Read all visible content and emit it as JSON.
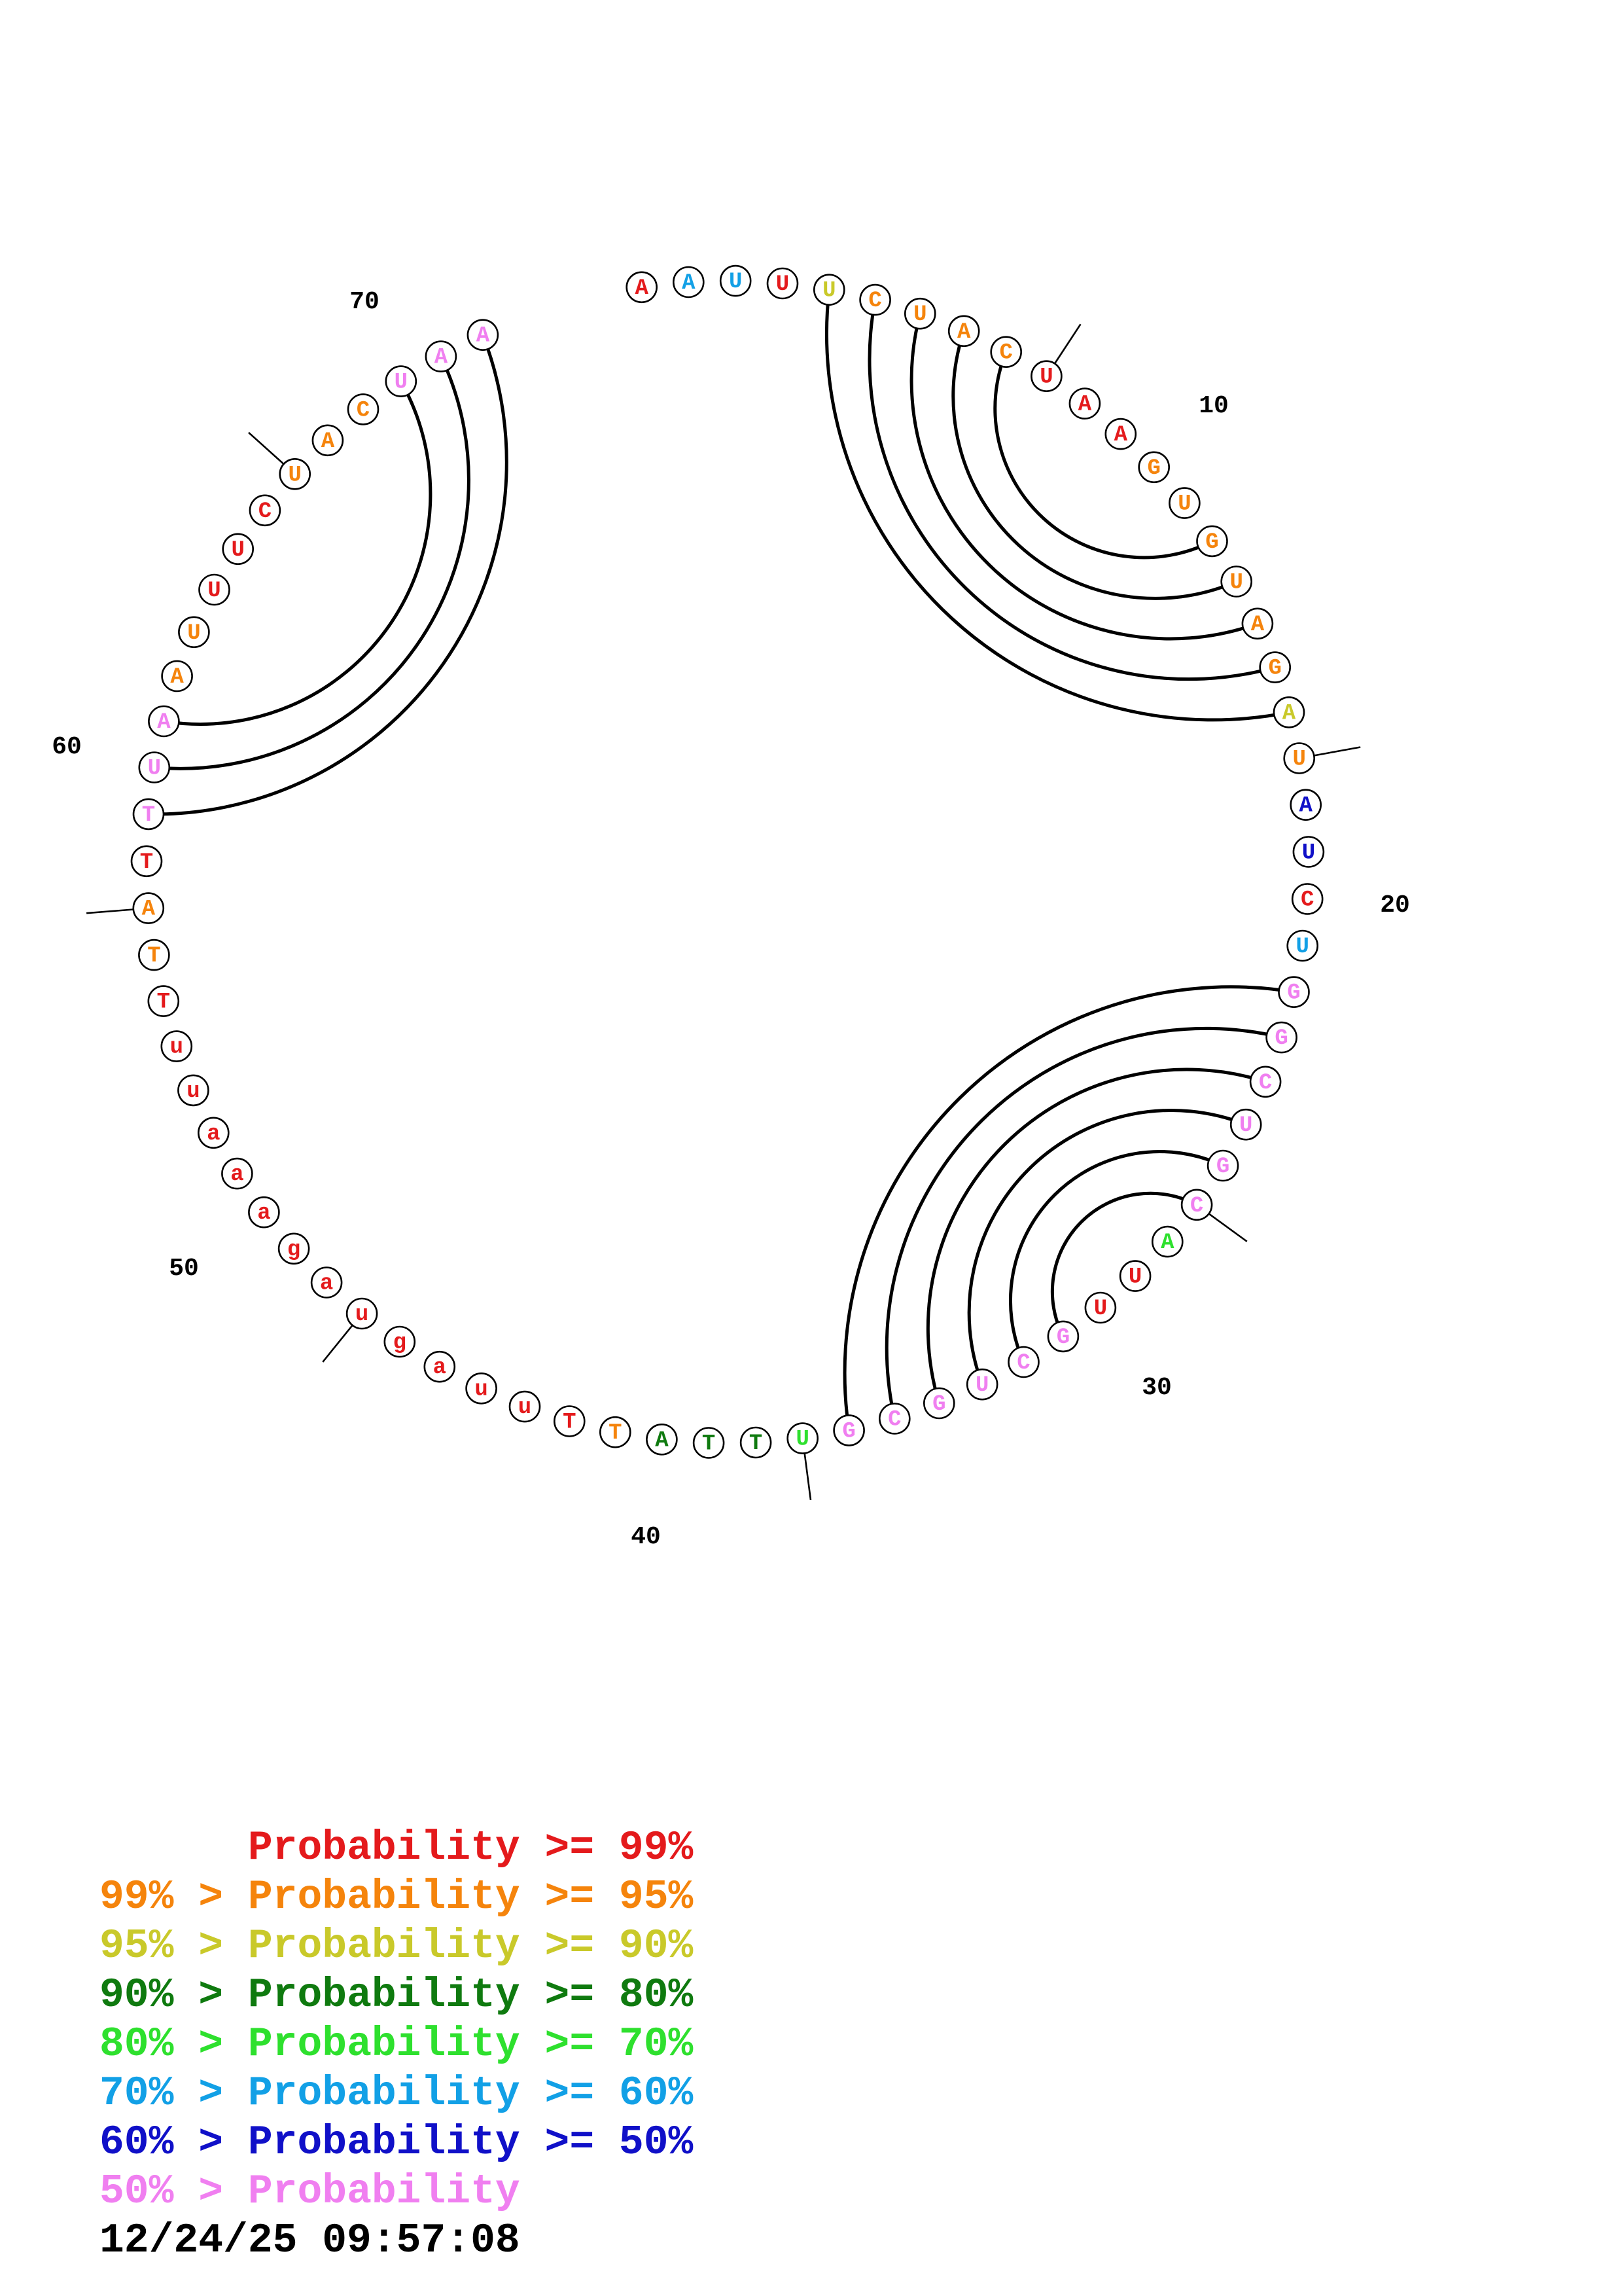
{
  "colors": {
    "p99": "#e41a1c",
    "p95": "#f5840c",
    "p90": "#c9c92a",
    "p80": "#0f7a0f",
    "p70": "#2ee02e",
    "p60": "#12a0e6",
    "p50": "#1010c8",
    "plow": "#f07ff0"
  },
  "sequence": [
    {
      "n": 1,
      "b": "A",
      "c": "p99"
    },
    {
      "n": 2,
      "b": "A",
      "c": "p60"
    },
    {
      "n": 3,
      "b": "U",
      "c": "p60"
    },
    {
      "n": 4,
      "b": "U",
      "c": "p99"
    },
    {
      "n": 5,
      "b": "U",
      "c": "p90"
    },
    {
      "n": 6,
      "b": "C",
      "c": "p95"
    },
    {
      "n": 7,
      "b": "U",
      "c": "p95"
    },
    {
      "n": 8,
      "b": "A",
      "c": "p95"
    },
    {
      "n": 9,
      "b": "C",
      "c": "p95"
    },
    {
      "n": 10,
      "b": "U",
      "c": "p99"
    },
    {
      "n": 11,
      "b": "A",
      "c": "p99"
    },
    {
      "n": 12,
      "b": "A",
      "c": "p99"
    },
    {
      "n": 13,
      "b": "G",
      "c": "p95"
    },
    {
      "n": 14,
      "b": "U",
      "c": "p95"
    },
    {
      "n": 15,
      "b": "G",
      "c": "p95"
    },
    {
      "n": 16,
      "b": "U",
      "c": "p95"
    },
    {
      "n": 17,
      "b": "A",
      "c": "p95"
    },
    {
      "n": 18,
      "b": "G",
      "c": "p95"
    },
    {
      "n": 19,
      "b": "A",
      "c": "p90"
    },
    {
      "n": 20,
      "b": "U",
      "c": "p95"
    },
    {
      "n": 21,
      "b": "A",
      "c": "p50"
    },
    {
      "n": 22,
      "b": "U",
      "c": "p50"
    },
    {
      "n": 23,
      "b": "C",
      "c": "p99"
    },
    {
      "n": 24,
      "b": "U",
      "c": "p60"
    },
    {
      "n": 25,
      "b": "G",
      "c": "plow"
    },
    {
      "n": 26,
      "b": "G",
      "c": "plow"
    },
    {
      "n": 27,
      "b": "C",
      "c": "plow"
    },
    {
      "n": 28,
      "b": "U",
      "c": "plow"
    },
    {
      "n": 29,
      "b": "G",
      "c": "plow"
    },
    {
      "n": 30,
      "b": "C",
      "c": "plow"
    },
    {
      "n": 31,
      "b": "A",
      "c": "p70"
    },
    {
      "n": 32,
      "b": "U",
      "c": "p99"
    },
    {
      "n": 33,
      "b": "U",
      "c": "p99"
    },
    {
      "n": 34,
      "b": "G",
      "c": "plow"
    },
    {
      "n": 35,
      "b": "C",
      "c": "plow"
    },
    {
      "n": 36,
      "b": "U",
      "c": "plow"
    },
    {
      "n": 37,
      "b": "G",
      "c": "plow"
    },
    {
      "n": 38,
      "b": "C",
      "c": "plow"
    },
    {
      "n": 39,
      "b": "G",
      "c": "plow"
    },
    {
      "n": 40,
      "b": "U",
      "c": "p70"
    },
    {
      "n": 41,
      "b": "T",
      "c": "p80"
    },
    {
      "n": 42,
      "b": "T",
      "c": "p80"
    },
    {
      "n": 43,
      "b": "A",
      "c": "p80"
    },
    {
      "n": 44,
      "b": "T",
      "c": "p95"
    },
    {
      "n": 45,
      "b": "T",
      "c": "p99"
    },
    {
      "n": 46,
      "b": "u",
      "c": "p99"
    },
    {
      "n": 47,
      "b": "u",
      "c": "p99"
    },
    {
      "n": 48,
      "b": "a",
      "c": "p99"
    },
    {
      "n": 49,
      "b": "g",
      "c": "p99"
    },
    {
      "n": 50,
      "b": "u",
      "c": "p99"
    },
    {
      "n": 51,
      "b": "a",
      "c": "p99"
    },
    {
      "n": 52,
      "b": "g",
      "c": "p99"
    },
    {
      "n": 53,
      "b": "a",
      "c": "p99"
    },
    {
      "n": 54,
      "b": "a",
      "c": "p99"
    },
    {
      "n": 55,
      "b": "a",
      "c": "p99"
    },
    {
      "n": 56,
      "b": "u",
      "c": "p99"
    },
    {
      "n": 57,
      "b": "u",
      "c": "p99"
    },
    {
      "n": 58,
      "b": "T",
      "c": "p99"
    },
    {
      "n": 59,
      "b": "T",
      "c": "p95"
    },
    {
      "n": 60,
      "b": "A",
      "c": "p95"
    },
    {
      "n": 61,
      "b": "T",
      "c": "p99"
    },
    {
      "n": 62,
      "b": "T",
      "c": "plow"
    },
    {
      "n": 63,
      "b": "U",
      "c": "plow"
    },
    {
      "n": 64,
      "b": "A",
      "c": "plow"
    },
    {
      "n": 65,
      "b": "A",
      "c": "p95"
    },
    {
      "n": 66,
      "b": "U",
      "c": "p95"
    },
    {
      "n": 67,
      "b": "U",
      "c": "p99"
    },
    {
      "n": 68,
      "b": "U",
      "c": "p99"
    },
    {
      "n": 69,
      "b": "C",
      "c": "p99"
    },
    {
      "n": 70,
      "b": "U",
      "c": "p95"
    },
    {
      "n": 71,
      "b": "A",
      "c": "p95"
    },
    {
      "n": 72,
      "b": "C",
      "c": "p95"
    },
    {
      "n": 73,
      "b": "U",
      "c": "plow"
    },
    {
      "n": 74,
      "b": "A",
      "c": "plow"
    },
    {
      "n": 75,
      "b": "A",
      "c": "plow"
    }
  ],
  "pairs": [
    [
      5,
      19
    ],
    [
      6,
      18
    ],
    [
      7,
      17
    ],
    [
      8,
      16
    ],
    [
      9,
      15
    ],
    [
      25,
      39
    ],
    [
      26,
      38
    ],
    [
      27,
      37
    ],
    [
      28,
      36
    ],
    [
      29,
      35
    ],
    [
      30,
      34
    ],
    [
      62,
      75
    ],
    [
      63,
      74
    ],
    [
      64,
      73
    ]
  ],
  "position_labels": [
    "10",
    "20",
    "30",
    "40",
    "50",
    "60",
    "70"
  ],
  "legend": [
    {
      "prefix": "",
      "label": "Probability >= 99%",
      "color": "p99"
    },
    {
      "prefix": "99% > ",
      "label": "Probability >= 95%",
      "color": "p95"
    },
    {
      "prefix": "95% > ",
      "label": "Probability >= 90%",
      "color": "p90"
    },
    {
      "prefix": "90% > ",
      "label": "Probability >= 80%",
      "color": "p80"
    },
    {
      "prefix": "80% > ",
      "label": "Probability >= 70%",
      "color": "p70"
    },
    {
      "prefix": "70% > ",
      "label": "Probability >= 60%",
      "color": "p60"
    },
    {
      "prefix": "60% > ",
      "label": "Probability >= 50%",
      "color": "p50"
    },
    {
      "prefix": "50% > ",
      "label": "Probability",
      "color": "plow"
    }
  ],
  "timestamp": "12/24/25 09:57:08"
}
